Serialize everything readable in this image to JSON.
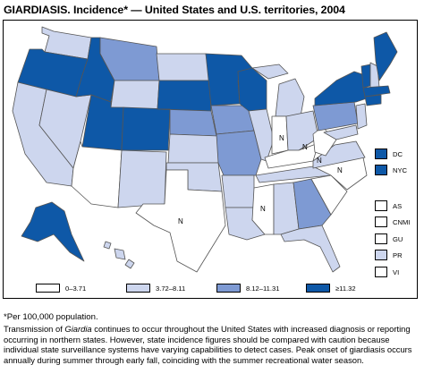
{
  "title": "GIARDIASIS. Incidence* — United States and U.S. territories, 2004",
  "colors": {
    "c0": "#ffffff",
    "c1": "#cdd6ee",
    "c2": "#7e9ad3",
    "c3": "#0e58a7",
    "border": "#555555"
  },
  "legend": [
    {
      "label": "0–3.71",
      "color_key": "c0"
    },
    {
      "label": "3.72–8.11",
      "color_key": "c1"
    },
    {
      "label": "8.12–11.31",
      "color_key": "c2"
    },
    {
      "label": "≥11.32",
      "color_key": "c3"
    }
  ],
  "not_notifiable_mark": "N",
  "side_legend": [
    {
      "label": "DC",
      "color_key": "c3"
    },
    {
      "label": "NYC",
      "color_key": "c3"
    },
    {
      "label": "AS",
      "color_key": "c0"
    },
    {
      "label": "CNMI",
      "color_key": "c0"
    },
    {
      "label": "GU",
      "color_key": "c0"
    },
    {
      "label": "PR",
      "color_key": "c1"
    },
    {
      "label": "VI",
      "color_key": "c0"
    }
  ],
  "footnote": "*Per 100,000 population.",
  "note": {
    "part1": "Transmission of ",
    "italic": "Giardia",
    "part2": " continues to occur throughout the United States with increased diagnosis or reporting occurring in northern states. However, state incidence figures should be compared with caution because individual state surveillance systems have varying capabilities to detect cases. Peak onset of giardiasis occurs annually during summer through early fall, coinciding with the summer recreational water season."
  }
}
